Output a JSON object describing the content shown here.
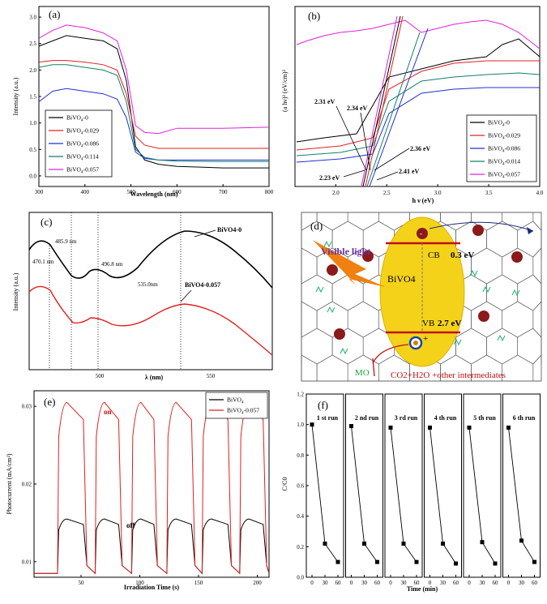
{
  "chart_data": [
    {
      "panel": "(a)",
      "type": "line",
      "xlabel": "Wavelength (nm)",
      "ylabel": "Intensity (a.u.)",
      "xlim": [
        300,
        800
      ],
      "ylim": [
        -0.2,
        3.2
      ],
      "xticks": [
        "300",
        "400",
        "500",
        "600",
        "700",
        "800"
      ],
      "yticks": [
        "0.0",
        "0.5",
        "1.0",
        "1.5",
        "2.0",
        "2.5",
        "3.0"
      ],
      "series": [
        {
          "name": "BiVO4-0",
          "color": "#000000",
          "x": [
            300,
            330,
            360,
            400,
            440,
            470,
            490,
            510,
            530,
            560,
            600,
            700,
            800
          ],
          "values": [
            2.45,
            2.55,
            2.65,
            2.6,
            2.55,
            2.4,
            1.8,
            0.55,
            0.3,
            0.22,
            0.18,
            0.15,
            0.15
          ]
        },
        {
          "name": "BiVO4-0.029",
          "color": "#e02020",
          "x": [
            300,
            330,
            360,
            400,
            440,
            470,
            490,
            510,
            530,
            560,
            600,
            700,
            800
          ],
          "values": [
            2.15,
            2.18,
            2.18,
            2.15,
            2.1,
            2.0,
            1.55,
            0.75,
            0.58,
            0.52,
            0.52,
            0.52,
            0.52
          ]
        },
        {
          "name": "BiVO4-0.086",
          "color": "#2030d0",
          "x": [
            300,
            330,
            360,
            400,
            440,
            470,
            490,
            510,
            530,
            560,
            600,
            700,
            800
          ],
          "values": [
            1.4,
            1.6,
            1.65,
            1.6,
            1.55,
            1.45,
            1.1,
            0.45,
            0.33,
            0.3,
            0.3,
            0.3,
            0.3
          ]
        },
        {
          "name": "BiVO4-0.114",
          "color": "#108070",
          "x": [
            300,
            330,
            360,
            400,
            440,
            470,
            490,
            510,
            530,
            560,
            600,
            700,
            800
          ],
          "values": [
            2.05,
            2.1,
            2.1,
            2.05,
            2.0,
            1.9,
            1.4,
            0.5,
            0.35,
            0.3,
            0.28,
            0.27,
            0.27
          ]
        },
        {
          "name": "BiVO4-0.057",
          "color": "#e020e0",
          "x": [
            300,
            330,
            360,
            400,
            440,
            470,
            490,
            510,
            530,
            560,
            600,
            700,
            800
          ],
          "values": [
            2.6,
            2.75,
            2.85,
            2.8,
            2.7,
            2.55,
            2.0,
            0.95,
            0.82,
            0.8,
            0.9,
            0.9,
            0.92
          ]
        }
      ]
    },
    {
      "panel": "(b)",
      "type": "line",
      "xlabel": "h ν (eV)",
      "ylabel": "(a hν)² (eV/cm)²",
      "xlim": [
        1.6,
        4.0
      ],
      "xticks": [
        "2.0",
        "2.5",
        "3.0",
        "3.5",
        "4.0"
      ],
      "annotations": [
        "2.31 eV",
        "2.34 eV",
        "2.36 eV",
        "2.23 eV",
        "2.41 eV"
      ],
      "series": [
        {
          "name": "BiVO4-0",
          "color": "#000000"
        },
        {
          "name": "BiVO4-0.029",
          "color": "#e02020"
        },
        {
          "name": "BiVO4-0.086",
          "color": "#2030d0"
        },
        {
          "name": "BiVO4-0.014",
          "color": "#108070"
        },
        {
          "name": "BiVO4-0.057",
          "color": "#e020e0"
        }
      ]
    },
    {
      "panel": "(c)",
      "type": "line",
      "xlabel": "λ (nm)",
      "ylabel": "Intensity (a.u.)",
      "xticks": [
        "500",
        "550"
      ],
      "peaks": [
        "470.1 nm",
        "485.9 nm",
        "496.8 nm",
        "535.0nm"
      ],
      "series": [
        {
          "name": "BiVO4-0",
          "color": "#000000"
        },
        {
          "name": "BiVO4-0.057",
          "color": "#e02020"
        }
      ]
    },
    {
      "panel": "(d)",
      "type": "diagram",
      "labels": [
        "Visible light",
        "CB",
        "0.3 eV",
        "BiVO4",
        "VB",
        "2.7 eV",
        "MO",
        "CO2+H2O +other intermediates"
      ]
    },
    {
      "panel": "(e)",
      "type": "line",
      "xlabel": "Irradiation Time (s)",
      "ylabel": "Photocurrent (mA/cm²)",
      "xlim": [
        10,
        210
      ],
      "ylim": [
        0.008,
        0.032
      ],
      "xticks": [
        "50",
        "100",
        "150",
        "200"
      ],
      "yticks": [
        "0.01",
        "0.02",
        "0.03"
      ],
      "on_label": "on",
      "off_label": "off",
      "cycles_on": [
        [
          30,
          55
        ],
        [
          62,
          85
        ],
        [
          93,
          115
        ],
        [
          123,
          147
        ],
        [
          153,
          178
        ],
        [
          185,
          208
        ]
      ],
      "series": [
        {
          "name": "BiVO4",
          "color": "#000000",
          "low": 0.0085,
          "high": 0.0155
        },
        {
          "name": "BiVO4-0.057",
          "color": "#e02020",
          "low": 0.0085,
          "high": 0.0305
        }
      ]
    },
    {
      "panel": "(f)",
      "type": "scatter",
      "xlabel": "Time (min)",
      "ylabel": "C/C0",
      "ylim": [
        0.0,
        1.2
      ],
      "yticks": [
        "0.0",
        "0.2",
        "0.4",
        "0.6",
        "0.8",
        "1.0",
        "1.2"
      ],
      "xticks": [
        "0",
        "30",
        "60"
      ],
      "runs": [
        {
          "name": "1 st run",
          "x": [
            0,
            30,
            60
          ],
          "values": [
            1.0,
            0.22,
            0.1
          ]
        },
        {
          "name": "2 nd run",
          "x": [
            0,
            30,
            60
          ],
          "values": [
            0.99,
            0.22,
            0.1
          ]
        },
        {
          "name": "3 rd run",
          "x": [
            0,
            30,
            60
          ],
          "values": [
            0.98,
            0.22,
            0.1
          ]
        },
        {
          "name": "4 th run",
          "x": [
            0,
            30,
            60
          ],
          "values": [
            0.98,
            0.22,
            0.09
          ]
        },
        {
          "name": "5 th run",
          "x": [
            0,
            30,
            60
          ],
          "values": [
            0.98,
            0.23,
            0.09
          ]
        },
        {
          "name": "6 th run",
          "x": [
            0,
            30,
            60
          ],
          "values": [
            0.98,
            0.24,
            0.1
          ]
        }
      ]
    }
  ],
  "labels": {
    "a": "(a)",
    "b": "(b)",
    "c": "(c)",
    "d": "(d)",
    "e": "(e)",
    "f": "(f)",
    "legend_a": [
      "BiVO4-0",
      "BiVO4-0.029",
      "BiVO4-0.086",
      "BiVO4-0.114",
      "BiVO4-0.057"
    ],
    "legend_b": [
      "BiVO4-0",
      "BiVO4-0.029",
      "BiVO4-0.086",
      "BiVO4-0.014",
      "BiVO4-0.057"
    ],
    "legend_e": [
      "BiVO4",
      "BiVO4-0.057"
    ]
  }
}
